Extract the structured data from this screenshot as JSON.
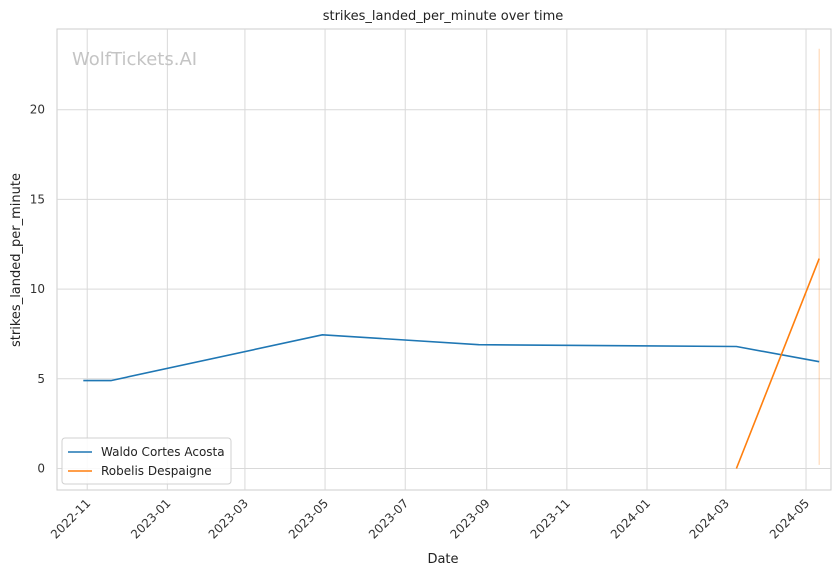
{
  "chart_data": {
    "type": "line",
    "title": "strikes_landed_per_minute over time",
    "xlabel": "Date",
    "ylabel": "strikes_landed_per_minute",
    "watermark": "WolfTickets.AI",
    "x_range": [
      "2022-10-09",
      "2024-05-20"
    ],
    "ylim": [
      -1.2,
      24.5
    ],
    "x_ticks": [
      {
        "date": "2022-11-01",
        "label": "2022-11"
      },
      {
        "date": "2023-01-01",
        "label": "2023-01"
      },
      {
        "date": "2023-03-01",
        "label": "2023-03"
      },
      {
        "date": "2023-05-01",
        "label": "2023-05"
      },
      {
        "date": "2023-07-01",
        "label": "2023-07"
      },
      {
        "date": "2023-09-01",
        "label": "2023-09"
      },
      {
        "date": "2023-11-01",
        "label": "2023-11"
      },
      {
        "date": "2024-01-01",
        "label": "2024-01"
      },
      {
        "date": "2024-03-01",
        "label": "2024-03"
      },
      {
        "date": "2024-05-01",
        "label": "2024-05"
      }
    ],
    "y_ticks": [
      0,
      5,
      10,
      15,
      20
    ],
    "grid": true,
    "legend_position": "lower-left",
    "series": [
      {
        "name": "Waldo Cortes Acosta",
        "color": "#1f77b4",
        "points": [
          {
            "x": "2022-10-29",
            "y": 4.9
          },
          {
            "x": "2022-11-19",
            "y": 4.9
          },
          {
            "x": "2023-04-29",
            "y": 7.45
          },
          {
            "x": "2023-08-26",
            "y": 6.9
          },
          {
            "x": "2024-03-09",
            "y": 6.8
          },
          {
            "x": "2024-05-11",
            "y": 5.95
          }
        ]
      },
      {
        "name": "Robelis Despaigne",
        "color": "#ff7f0e",
        "points": [
          {
            "x": "2024-03-09",
            "y": 0.0
          },
          {
            "x": "2024-05-11",
            "y": 11.7
          }
        ]
      }
    ],
    "extra_marks": [
      {
        "type": "vertical_segment",
        "x": "2024-05-11",
        "y0": 0.2,
        "y1": 23.4,
        "color": "#ff7f0e"
      }
    ]
  }
}
